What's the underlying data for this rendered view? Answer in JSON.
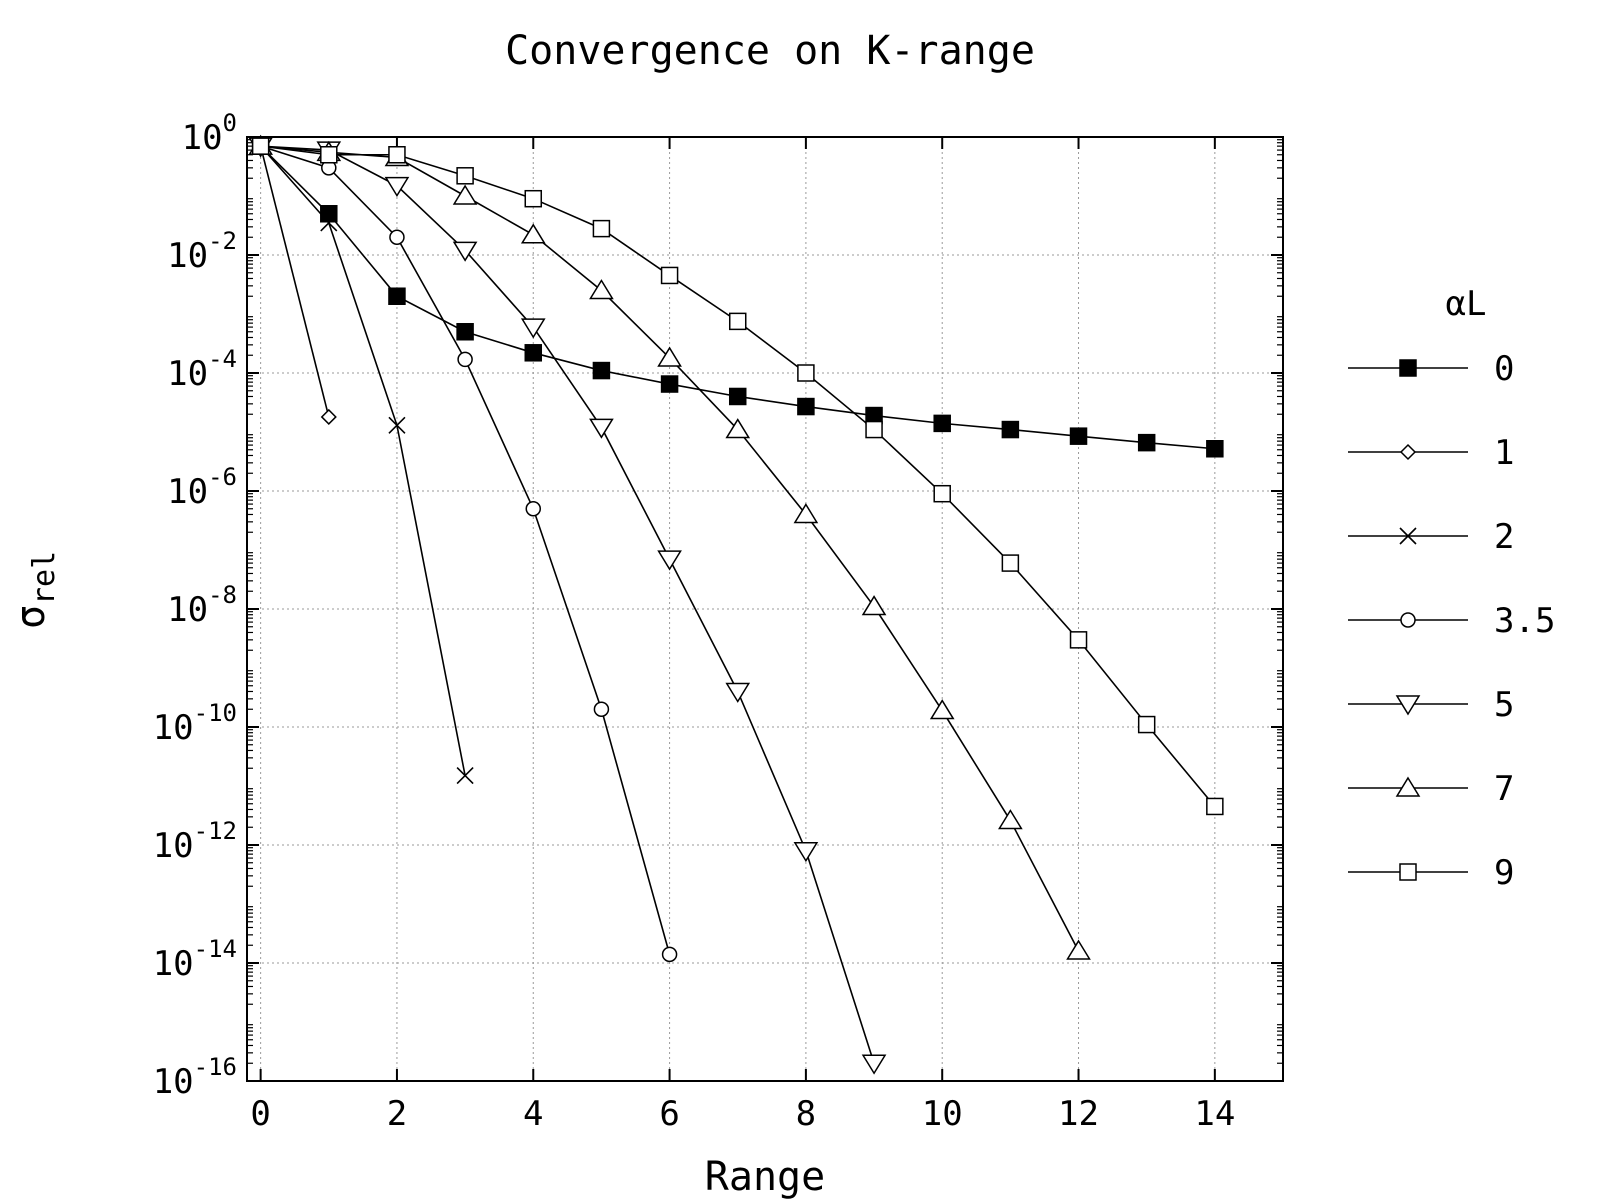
{
  "chart_data": {
    "type": "line",
    "title": "Convergence on K-range",
    "xlabel": "Range",
    "ylabel": {
      "base": "σ",
      "sub": "rel"
    },
    "x_scale": "linear",
    "y_scale": "log",
    "xlim": [
      -0.2,
      15
    ],
    "ylim_log10": [
      -16,
      0
    ],
    "x_ticks": [
      "0",
      "2",
      "4",
      "6",
      "8",
      "10",
      "12",
      "14"
    ],
    "y_ticks": [
      {
        "base": "10",
        "exp": "0"
      },
      {
        "base": "10",
        "exp": "-2"
      },
      {
        "base": "10",
        "exp": "-4"
      },
      {
        "base": "10",
        "exp": "-6"
      },
      {
        "base": "10",
        "exp": "-8"
      },
      {
        "base": "10",
        "exp": "-10"
      },
      {
        "base": "10",
        "exp": "-12"
      },
      {
        "base": "10",
        "exp": "-14"
      },
      {
        "base": "10",
        "exp": "-16"
      }
    ],
    "grid": true,
    "legend_title": "αL",
    "legend_position": "right",
    "series": [
      {
        "name": "0",
        "marker": "filled-square",
        "x": [
          0,
          1,
          2,
          3,
          4,
          5,
          6,
          7,
          8,
          9,
          10,
          11,
          12,
          13,
          14
        ],
        "y": [
          0.7,
          0.05,
          0.002,
          0.0005,
          0.00022,
          0.00011,
          6.5e-05,
          4e-05,
          2.7e-05,
          1.9e-05,
          1.4e-05,
          1.1e-05,
          8.5e-06,
          6.6e-06,
          5.2e-06
        ]
      },
      {
        "name": "1",
        "marker": "diamond",
        "x": [
          0,
          1
        ],
        "y": [
          0.7,
          1.8e-05
        ]
      },
      {
        "name": "2",
        "marker": "cross",
        "x": [
          0,
          1,
          2,
          3
        ],
        "y": [
          0.7,
          0.035,
          1.3e-05,
          1.5e-11
        ]
      },
      {
        "name": "3.5",
        "marker": "circle",
        "x": [
          0,
          1,
          2,
          3,
          4,
          5,
          6
        ],
        "y": [
          0.7,
          0.3,
          0.02,
          0.00017,
          5e-07,
          2e-10,
          1.4e-14
        ]
      },
      {
        "name": "5",
        "marker": "triangle-down",
        "x": [
          0,
          1,
          2,
          3,
          4,
          5,
          6,
          7,
          8,
          9
        ],
        "y": [
          0.7,
          0.6,
          0.15,
          0.012,
          0.0006,
          1.2e-05,
          7e-08,
          4e-10,
          8e-13,
          2e-16
        ]
      },
      {
        "name": "7",
        "marker": "triangle-up",
        "x": [
          0,
          1,
          2,
          3,
          4,
          5,
          6,
          7,
          8,
          9,
          10,
          11,
          12
        ],
        "y": [
          0.7,
          0.55,
          0.45,
          0.1,
          0.022,
          0.0025,
          0.00018,
          1.1e-05,
          4e-07,
          1.1e-08,
          1.9e-10,
          2.6e-12,
          1.6e-14
        ]
      },
      {
        "name": "9",
        "marker": "square",
        "x": [
          0,
          1,
          2,
          3,
          4,
          5,
          6,
          7,
          8,
          9,
          10,
          11,
          12,
          13,
          14
        ],
        "y": [
          0.7,
          0.5,
          0.5,
          0.22,
          0.09,
          0.028,
          0.0045,
          0.00075,
          0.0001,
          1.1e-05,
          9e-07,
          6e-08,
          3e-09,
          1.1e-10,
          4.5e-12
        ]
      }
    ]
  }
}
